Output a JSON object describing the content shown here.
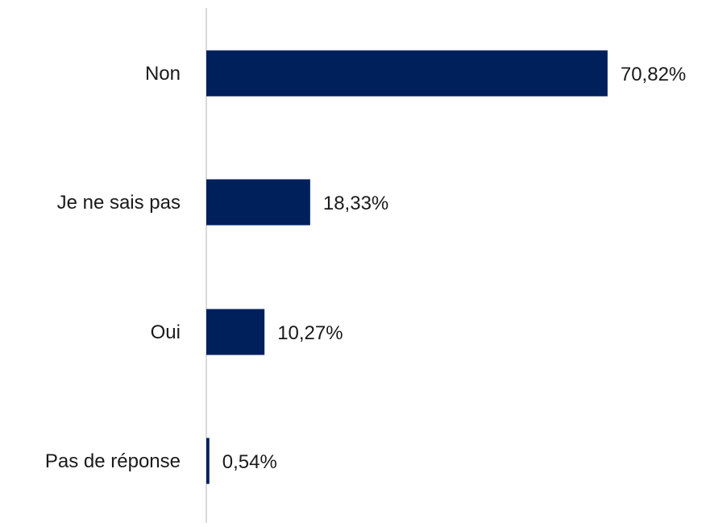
{
  "chart_data": {
    "type": "bar",
    "orientation": "horizontal",
    "categories": [
      "Non",
      "Je ne sais pas",
      "Oui",
      "Pas de réponse"
    ],
    "values": [
      70.82,
      18.33,
      10.27,
      0.54
    ],
    "value_labels": [
      "70,82%",
      "18,33%",
      "10,27%",
      "0,54%"
    ],
    "bar_color": "#00205b",
    "axis_color": "#d9d9d9",
    "xlim": [
      0,
      75
    ],
    "grid": false,
    "legend": "none"
  }
}
